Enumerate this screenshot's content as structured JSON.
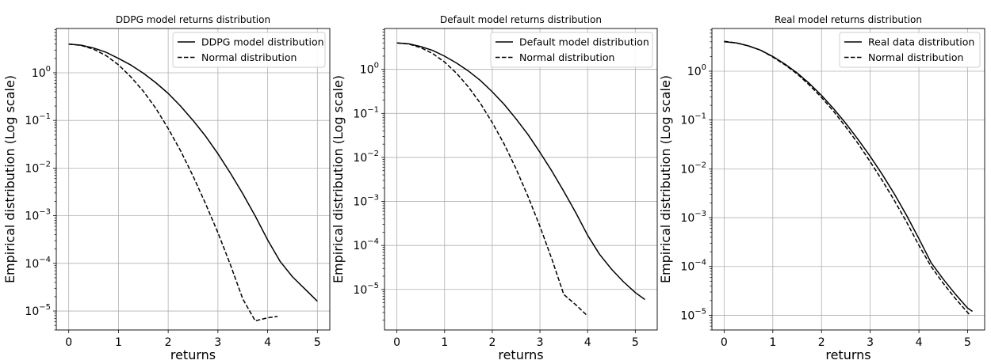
{
  "chart_data": [
    {
      "type": "line",
      "title": "DDPG model returns distribution",
      "xlabel": "returns",
      "ylabel": "Empirical distribution (Log scale)",
      "yscale": "log",
      "xlim": [
        -0.25,
        5.25
      ],
      "ylim": [
        4e-06,
        8.5
      ],
      "xticks": [
        0,
        1,
        2,
        3,
        4,
        5
      ],
      "yticks": [
        1e-05,
        0.0001,
        0.001,
        0.01,
        0.1,
        1
      ],
      "grid": true,
      "legend": "top-right",
      "series": [
        {
          "name": "DDPG model distribution",
          "style": "solid",
          "x": [
            0,
            0.25,
            0.5,
            0.75,
            1,
            1.25,
            1.5,
            1.75,
            2,
            2.25,
            2.5,
            2.75,
            3,
            3.25,
            3.5,
            3.75,
            4,
            4.25,
            4.5,
            4.75,
            5
          ],
          "y": [
            4.0,
            3.8,
            3.3,
            2.7,
            2.0,
            1.45,
            0.98,
            0.62,
            0.37,
            0.2,
            0.1,
            0.047,
            0.02,
            0.0079,
            0.0029,
            0.00099,
            0.00031,
            0.00011,
            5.2e-05,
            2.9e-05,
            1.6e-05
          ]
        },
        {
          "name": "Normal distribution",
          "style": "dashed",
          "x": [
            0,
            0.25,
            0.5,
            0.75,
            1,
            1.25,
            1.5,
            1.75,
            2,
            2.25,
            2.5,
            2.75,
            3,
            3.25,
            3.5,
            3.75,
            4,
            4.2
          ],
          "y": [
            4.0,
            3.76,
            3.12,
            2.3,
            1.47,
            0.82,
            0.41,
            0.18,
            0.068,
            0.023,
            0.0068,
            0.0018,
            0.00044,
            9.5e-05,
            1.8e-05,
            6.2e-06,
            7.2e-06,
            7.7e-06
          ]
        }
      ]
    },
    {
      "type": "line",
      "title": "Default model returns distribution",
      "xlabel": "returns",
      "ylabel": "Empirical distribution (Log scale)",
      "yscale": "log",
      "xlim": [
        -0.26,
        5.46
      ],
      "ylim": [
        1.2e-06,
        8.5
      ],
      "xticks": [
        0,
        1,
        2,
        3,
        4,
        5
      ],
      "yticks": [
        1e-05,
        0.0001,
        0.001,
        0.01,
        0.1,
        1
      ],
      "grid": true,
      "legend": "top-right",
      "series": [
        {
          "name": "Default model distribution",
          "style": "solid",
          "x": [
            0,
            0.25,
            0.5,
            0.75,
            1,
            1.25,
            1.5,
            1.75,
            2,
            2.25,
            2.5,
            2.75,
            3,
            3.25,
            3.5,
            3.75,
            4,
            4.25,
            4.5,
            4.75,
            5,
            5.2
          ],
          "y": [
            4.0,
            3.8,
            3.3,
            2.7,
            2.0,
            1.4,
            0.92,
            0.56,
            0.31,
            0.16,
            0.075,
            0.033,
            0.013,
            0.0049,
            0.0017,
            0.00056,
            0.00017,
            6.3e-05,
            2.9e-05,
            1.5e-05,
            8.5e-06,
            5.9e-06
          ]
        },
        {
          "name": "Normal distribution",
          "style": "dashed",
          "x": [
            0,
            0.25,
            0.5,
            0.75,
            1,
            1.25,
            1.5,
            1.75,
            2,
            2.25,
            2.5,
            2.75,
            3,
            3.25,
            3.5,
            3.75,
            4
          ],
          "y": [
            4.0,
            3.76,
            3.12,
            2.3,
            1.47,
            0.82,
            0.4,
            0.17,
            0.062,
            0.02,
            0.0055,
            0.0013,
            0.00027,
            4.9e-05,
            7.7e-06,
            4.5e-06,
            2.5e-06
          ]
        }
      ]
    },
    {
      "type": "line",
      "title": "Real model returns distribution",
      "xlabel": "returns",
      "ylabel": "Empirical distribution (Log scale)",
      "yscale": "log",
      "xlim": [
        -0.25,
        5.35
      ],
      "ylim": [
        5e-06,
        7.5
      ],
      "xticks": [
        0,
        1,
        2,
        3,
        4,
        5
      ],
      "yticks": [
        1e-05,
        0.0001,
        0.001,
        0.01,
        0.1,
        1
      ],
      "grid": true,
      "legend": "top-right",
      "series": [
        {
          "name": "Real data distribution",
          "style": "solid",
          "x": [
            0,
            0.25,
            0.5,
            0.75,
            1,
            1.25,
            1.5,
            1.75,
            2,
            2.25,
            2.5,
            2.75,
            3,
            3.25,
            3.5,
            3.75,
            4,
            4.25,
            4.5,
            4.75,
            5,
            5.1
          ],
          "y": [
            4.0,
            3.8,
            3.3,
            2.7,
            2.0,
            1.4,
            0.92,
            0.56,
            0.32,
            0.17,
            0.085,
            0.04,
            0.018,
            0.0076,
            0.003,
            0.0011,
            0.00037,
            0.00012,
            5.5e-05,
            2.7e-05,
            1.4e-05,
            1.2e-05
          ]
        },
        {
          "name": "Normal distribution",
          "style": "dashed",
          "x": [
            0,
            0.25,
            0.5,
            0.75,
            1,
            1.25,
            1.5,
            1.75,
            2,
            2.25,
            2.5,
            2.75,
            3,
            3.25,
            3.5,
            3.75,
            4,
            4.25,
            4.5,
            4.75,
            5.05
          ],
          "y": [
            4.1,
            3.8,
            3.3,
            2.7,
            1.95,
            1.35,
            0.88,
            0.52,
            0.29,
            0.15,
            0.072,
            0.033,
            0.014,
            0.0057,
            0.0022,
            0.0008,
            0.00027,
            0.0001,
            4.5e-05,
            2.2e-05,
            1e-05
          ]
        }
      ]
    }
  ]
}
